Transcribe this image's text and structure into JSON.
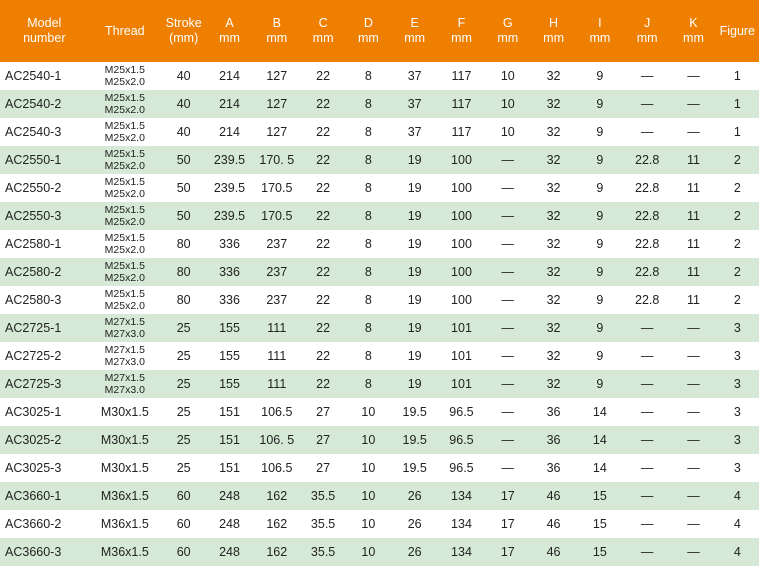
{
  "headers": [
    [
      "Model",
      "number"
    ],
    [
      "Thread",
      ""
    ],
    [
      "Stroke",
      "(mm)"
    ],
    [
      "A",
      "mm"
    ],
    [
      "B",
      "mm"
    ],
    [
      "C",
      "mm"
    ],
    [
      "D",
      "mm"
    ],
    [
      "E",
      "mm"
    ],
    [
      "F",
      "mm"
    ],
    [
      "G",
      "mm"
    ],
    [
      "H",
      "mm"
    ],
    [
      "I",
      "mm"
    ],
    [
      "J",
      "mm"
    ],
    [
      "K",
      "mm"
    ],
    [
      "Figure",
      ""
    ]
  ],
  "rows": [
    [
      "AC2540-1",
      [
        "M25x1.5",
        "M25x2.0"
      ],
      "40",
      "214",
      "127",
      "22",
      "8",
      "37",
      "117",
      "10",
      "32",
      "9",
      "—",
      "—",
      "1"
    ],
    [
      "AC2540-2",
      [
        "M25x1.5",
        "M25x2.0"
      ],
      "40",
      "214",
      "127",
      "22",
      "8",
      "37",
      "117",
      "10",
      "32",
      "9",
      "—",
      "—",
      "1"
    ],
    [
      "AC2540-3",
      [
        "M25x1.5",
        "M25x2.0"
      ],
      "40",
      "214",
      "127",
      "22",
      "8",
      "37",
      "117",
      "10",
      "32",
      "9",
      "—",
      "—",
      "1"
    ],
    [
      "AC2550-1",
      [
        "M25x1.5",
        "M25x2.0"
      ],
      "50",
      "239.5",
      "170. 5",
      "22",
      "8",
      "19",
      "100",
      "—",
      "32",
      "9",
      "22.8",
      "11",
      "2"
    ],
    [
      "AC2550-2",
      [
        "M25x1.5",
        "M25x2.0"
      ],
      "50",
      "239.5",
      "170.5",
      "22",
      "8",
      "19",
      "100",
      "—",
      "32",
      "9",
      "22.8",
      "11",
      "2"
    ],
    [
      "AC2550-3",
      [
        "M25x1.5",
        "M25x2.0"
      ],
      "50",
      "239.5",
      "170.5",
      "22",
      "8",
      "19",
      "100",
      "—",
      "32",
      "9",
      "22.8",
      "11",
      "2"
    ],
    [
      "AC2580-1",
      [
        "M25x1.5",
        "M25x2.0"
      ],
      "80",
      "336",
      "237",
      "22",
      "8",
      "19",
      "100",
      "—",
      "32",
      "9",
      "22.8",
      "11",
      "2"
    ],
    [
      "AC2580-2",
      [
        "M25x1.5",
        "M25x2.0"
      ],
      "80",
      "336",
      "237",
      "22",
      "8",
      "19",
      "100",
      "—",
      "32",
      "9",
      "22.8",
      "11",
      "2"
    ],
    [
      "AC2580-3",
      [
        "M25x1.5",
        "M25x2.0"
      ],
      "80",
      "336",
      "237",
      "22",
      "8",
      "19",
      "100",
      "—",
      "32",
      "9",
      "22.8",
      "11",
      "2"
    ],
    [
      "AC2725-1",
      [
        "M27x1.5",
        "M27x3.0"
      ],
      "25",
      "155",
      "111",
      "22",
      "8",
      "19",
      "101",
      "—",
      "32",
      "9",
      "—",
      "—",
      "3"
    ],
    [
      "AC2725-2",
      [
        "M27x1.5",
        "M27x3.0"
      ],
      "25",
      "155",
      "111",
      "22",
      "8",
      "19",
      "101",
      "—",
      "32",
      "9",
      "—",
      "—",
      "3"
    ],
    [
      "AC2725-3",
      [
        "M27x1.5",
        "M27x3.0"
      ],
      "25",
      "155",
      "111",
      "22",
      "8",
      "19",
      "101",
      "—",
      "32",
      "9",
      "—",
      "—",
      "3"
    ],
    [
      "AC3025-1",
      [
        "M30x1.5"
      ],
      "25",
      "151",
      "106.5",
      "27",
      "10",
      "19.5",
      "96.5",
      "—",
      "36",
      "14",
      "—",
      "—",
      "3"
    ],
    [
      "AC3025-2",
      [
        "M30x1.5"
      ],
      "25",
      "151",
      "106. 5",
      "27",
      "10",
      "19.5",
      "96.5",
      "—",
      "36",
      "14",
      "—",
      "—",
      "3"
    ],
    [
      "AC3025-3",
      [
        "M30x1.5"
      ],
      "25",
      "151",
      "106.5",
      "27",
      "10",
      "19.5",
      "96.5",
      "—",
      "36",
      "14",
      "—",
      "—",
      "3"
    ],
    [
      "AC3660-1",
      [
        "M36x1.5"
      ],
      "60",
      "248",
      "162",
      "35.5",
      "10",
      "26",
      "134",
      "17",
      "46",
      "15",
      "—",
      "—",
      "4"
    ],
    [
      "AC3660-2",
      [
        "M36x1.5"
      ],
      "60",
      "248",
      "162",
      "35.5",
      "10",
      "26",
      "134",
      "17",
      "46",
      "15",
      "—",
      "—",
      "4"
    ],
    [
      "AC3660-3",
      [
        "M36x1.5"
      ],
      "60",
      "248",
      "162",
      "35.5",
      "10",
      "26",
      "134",
      "17",
      "46",
      "15",
      "—",
      "—",
      "4"
    ]
  ],
  "colors": {
    "header": "#ef7f00",
    "alt_row": "#d5e9d6"
  }
}
